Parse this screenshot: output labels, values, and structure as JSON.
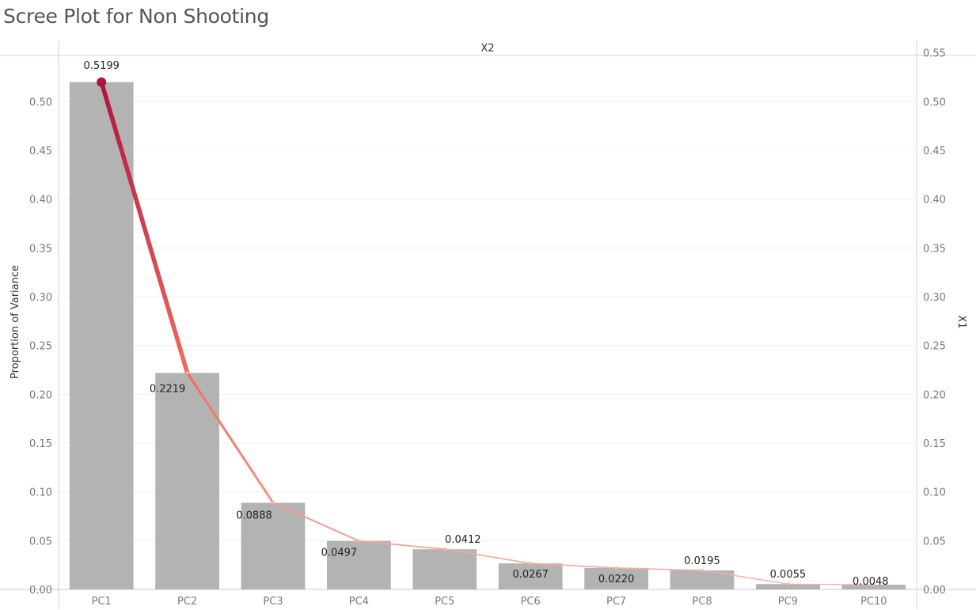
{
  "title": "Scree Plot for Non Shooting",
  "chart_data": {
    "type": "bar",
    "title": "Scree Plot for Non Shooting",
    "column_header": "X2",
    "categories": [
      "PC1",
      "PC2",
      "PC3",
      "PC4",
      "PC5",
      "PC6",
      "PC7",
      "PC8",
      "PC9",
      "PC10"
    ],
    "values": [
      0.5199,
      0.2219,
      0.0888,
      0.0497,
      0.0412,
      0.0267,
      0.022,
      0.0195,
      0.0055,
      0.0048
    ],
    "labels": [
      "0.5199",
      "0.2219",
      "0.0888",
      "0.0497",
      "0.0412",
      "0.0267",
      "0.0220",
      "0.0195",
      "0.0055",
      "0.0048"
    ],
    "line_overlay": {
      "values": [
        0.5199,
        0.2219,
        0.0888,
        0.0497,
        0.0412,
        0.0267,
        0.022,
        0.0195,
        0.0055,
        0.0048
      ],
      "color_high": "#b0143e",
      "color_mid": "#ee7060",
      "color_low": "#f6b3a6"
    },
    "ylabel": "Proportion of Variance",
    "ylabel_right": "X1",
    "ylim": [
      0,
      0.55
    ],
    "yticks_left": [
      "0.00",
      "0.05",
      "0.10",
      "0.15",
      "0.20",
      "0.25",
      "0.30",
      "0.35",
      "0.40",
      "0.45",
      "0.50"
    ],
    "yticks_right": [
      "0.00",
      "0.05",
      "0.10",
      "0.15",
      "0.20",
      "0.25",
      "0.30",
      "0.35",
      "0.40",
      "0.45",
      "0.50",
      "0.55"
    ],
    "bar_color": "#b3b3b3",
    "grid": true
  }
}
